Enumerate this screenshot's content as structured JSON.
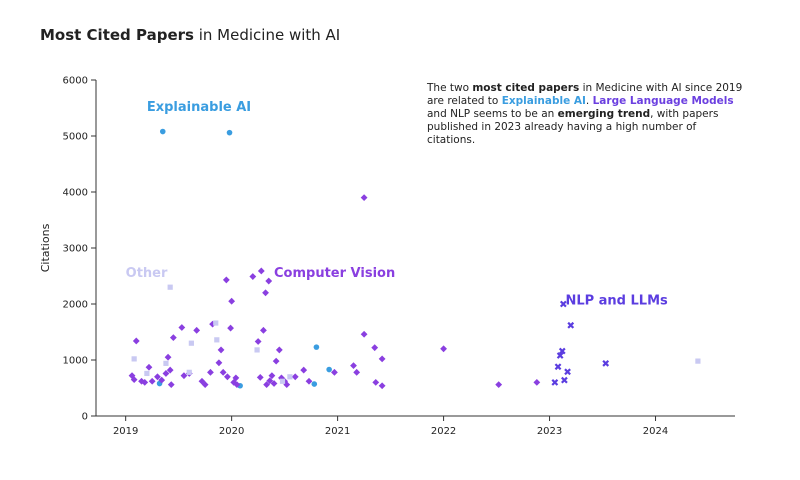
{
  "title": {
    "bold": "Most Cited Papers",
    "rest": " in Medicine with AI"
  },
  "annotation": {
    "p1": "The two ",
    "p2": "most cited papers",
    "p3": " in Medicine with AI since 2019 are related to ",
    "p4": "Explainable AI",
    "p5": ". ",
    "p6": "Large Language Models",
    "p7": " and NLP seems to be an ",
    "p8": "emerging trend",
    "p9": ", with papers published in 2023 already having a high number of citations."
  },
  "colors": {
    "Explainable AI": "#3a9de0",
    "Computer Vision": "#8a3fe0",
    "NLP and LLMs": "#5b3de0",
    "Other": "#c9c9f2"
  },
  "chart_data": {
    "type": "scatter",
    "title": "Most Cited Papers in Medicine with AI",
    "xlabel": "",
    "ylabel": "Citations",
    "xlim": [
      2018.72,
      2024.75
    ],
    "ylim": [
      0,
      6000
    ],
    "xticks": [
      2019,
      2020,
      2021,
      2022,
      2023,
      2024
    ],
    "yticks": [
      0,
      1000,
      2000,
      3000,
      4000,
      5000,
      6000
    ],
    "grid": false,
    "cluster_labels": [
      {
        "text": "Explainable AI",
        "series": "Explainable AI",
        "x": 2019.2,
        "y": 5450
      },
      {
        "text": "Computer Vision",
        "series": "Computer Vision",
        "x": 2020.4,
        "y": 2480
      },
      {
        "text": "NLP and LLMs",
        "series": "NLP and LLMs",
        "x": 2023.15,
        "y": 1990
      },
      {
        "text": "Other",
        "series": "Other",
        "x": 2019.0,
        "y": 2480
      }
    ],
    "series": [
      {
        "name": "Explainable AI",
        "marker": "circle",
        "points": [
          [
            2019.35,
            5080
          ],
          [
            2019.98,
            5060
          ],
          [
            2020.8,
            1230
          ],
          [
            2020.92,
            830
          ],
          [
            2019.32,
            580
          ],
          [
            2020.08,
            540
          ],
          [
            2020.78,
            570
          ]
        ]
      },
      {
        "name": "Computer Vision",
        "marker": "diamond",
        "points": [
          [
            2019.06,
            720
          ],
          [
            2019.08,
            650
          ],
          [
            2019.1,
            1340
          ],
          [
            2019.15,
            620
          ],
          [
            2019.18,
            600
          ],
          [
            2019.22,
            870
          ],
          [
            2019.25,
            620
          ],
          [
            2019.3,
            700
          ],
          [
            2019.34,
            640
          ],
          [
            2019.38,
            760
          ],
          [
            2019.4,
            1050
          ],
          [
            2019.42,
            820
          ],
          [
            2019.43,
            560
          ],
          [
            2019.45,
            1400
          ],
          [
            2019.53,
            1580
          ],
          [
            2019.55,
            720
          ],
          [
            2019.6,
            760
          ],
          [
            2019.67,
            1530
          ],
          [
            2019.72,
            620
          ],
          [
            2019.75,
            560
          ],
          [
            2019.8,
            780
          ],
          [
            2019.82,
            1640
          ],
          [
            2019.88,
            950
          ],
          [
            2019.9,
            1180
          ],
          [
            2019.92,
            780
          ],
          [
            2019.95,
            2430
          ],
          [
            2019.96,
            700
          ],
          [
            2019.99,
            1570
          ],
          [
            2020.0,
            2050
          ],
          [
            2020.02,
            600
          ],
          [
            2020.04,
            680
          ],
          [
            2020.05,
            560
          ],
          [
            2020.2,
            2490
          ],
          [
            2020.25,
            1330
          ],
          [
            2020.27,
            690
          ],
          [
            2020.28,
            2590
          ],
          [
            2020.3,
            1530
          ],
          [
            2020.32,
            2200
          ],
          [
            2020.33,
            560
          ],
          [
            2020.35,
            2410
          ],
          [
            2020.36,
            630
          ],
          [
            2020.38,
            720
          ],
          [
            2020.4,
            580
          ],
          [
            2020.42,
            980
          ],
          [
            2020.45,
            1180
          ],
          [
            2020.47,
            680
          ],
          [
            2020.5,
            620
          ],
          [
            2020.52,
            560
          ],
          [
            2020.6,
            700
          ],
          [
            2020.68,
            820
          ],
          [
            2020.73,
            620
          ],
          [
            2020.97,
            780
          ],
          [
            2021.15,
            900
          ],
          [
            2021.18,
            780
          ],
          [
            2021.25,
            1460
          ],
          [
            2021.25,
            3900
          ],
          [
            2021.35,
            1220
          ],
          [
            2021.36,
            600
          ],
          [
            2021.42,
            1020
          ],
          [
            2021.42,
            540
          ],
          [
            2022.0,
            1200
          ],
          [
            2022.52,
            560
          ],
          [
            2022.88,
            600
          ]
        ]
      },
      {
        "name": "NLP and LLMs",
        "marker": "x",
        "points": [
          [
            2023.05,
            600
          ],
          [
            2023.08,
            880
          ],
          [
            2023.1,
            1080
          ],
          [
            2023.12,
            1160
          ],
          [
            2023.13,
            2000
          ],
          [
            2023.14,
            640
          ],
          [
            2023.17,
            790
          ],
          [
            2023.2,
            1620
          ],
          [
            2023.53,
            940
          ]
        ]
      },
      {
        "name": "Other",
        "marker": "square",
        "points": [
          [
            2019.08,
            1020
          ],
          [
            2019.2,
            760
          ],
          [
            2019.38,
            940
          ],
          [
            2019.42,
            2300
          ],
          [
            2019.6,
            780
          ],
          [
            2019.62,
            1300
          ],
          [
            2019.85,
            1660
          ],
          [
            2019.86,
            1360
          ],
          [
            2020.24,
            1180
          ],
          [
            2020.48,
            620
          ],
          [
            2020.55,
            700
          ],
          [
            2024.4,
            980
          ]
        ]
      }
    ]
  }
}
